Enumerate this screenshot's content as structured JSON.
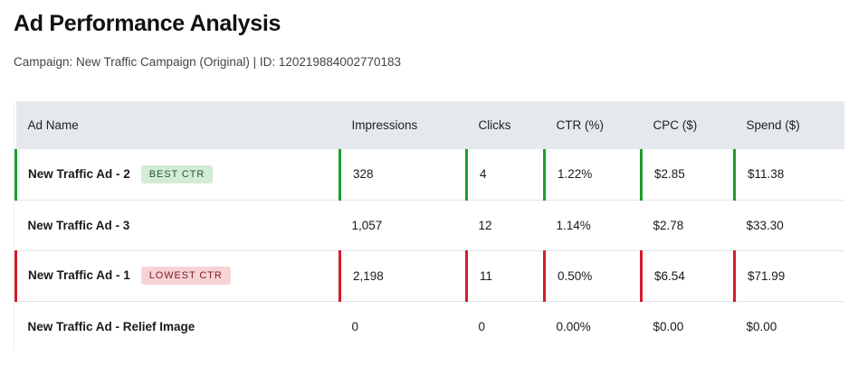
{
  "header": {
    "title": "Ad Performance Analysis",
    "subtitle": "Campaign: New Traffic Campaign (Original) | ID: 120219884002770183"
  },
  "table": {
    "columns": [
      "Ad Name",
      "Impressions",
      "Clicks",
      "CTR (%)",
      "CPC ($)",
      "Spend ($)"
    ],
    "rows": [
      {
        "name": "New Traffic Ad - 2",
        "badge": "BEST CTR",
        "highlight": "best",
        "impressions": "328",
        "clicks": "4",
        "ctr": "1.22%",
        "cpc": "$2.85",
        "spend": "$11.38"
      },
      {
        "name": "New Traffic Ad - 3",
        "badge": "",
        "highlight": "none",
        "impressions": "1,057",
        "clicks": "12",
        "ctr": "1.14%",
        "cpc": "$2.78",
        "spend": "$33.30"
      },
      {
        "name": "New Traffic Ad - 1",
        "badge": "LOWEST CTR",
        "highlight": "worst",
        "impressions": "2,198",
        "clicks": "11",
        "ctr": "0.50%",
        "cpc": "$6.54",
        "spend": "$71.99"
      },
      {
        "name": "New Traffic Ad - Relief Image",
        "badge": "",
        "highlight": "none",
        "impressions": "0",
        "clicks": "0",
        "ctr": "0.00%",
        "cpc": "$0.00",
        "spend": "$0.00"
      }
    ]
  },
  "colors": {
    "best_border": "#1f9d2e",
    "worst_border": "#d61b2a",
    "best_badge_bg": "#d3ecd5",
    "worst_badge_bg": "#f8d3d6",
    "header_bg": "#e5e8ec"
  }
}
